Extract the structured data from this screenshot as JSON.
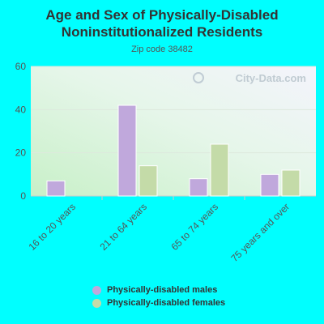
{
  "colors": {
    "background": "#00ffff",
    "males": "#c0a8dc",
    "females": "#c4dba8",
    "text": "#333333",
    "axis_text": "#555555"
  },
  "chart_data": {
    "type": "bar",
    "title_lines": [
      "Age and Sex of Physically-Disabled",
      "Noninstitutionalized Residents"
    ],
    "subtitle": "Zip code 38482",
    "watermark": "City-Data.com",
    "categories": [
      "16 to 20 years",
      "21 to 64 years",
      "65 to 74 years",
      "75 years and over"
    ],
    "series": [
      {
        "name": "Physically-disabled males",
        "values": [
          7,
          42,
          8,
          10
        ]
      },
      {
        "name": "Physically-disabled females",
        "values": [
          0,
          14,
          24,
          12
        ]
      }
    ],
    "yticks": [
      0,
      20,
      40,
      60
    ],
    "ylim": [
      0,
      60
    ],
    "xlabel": "",
    "ylabel": "",
    "grid": true,
    "legend_position": "bottom"
  }
}
